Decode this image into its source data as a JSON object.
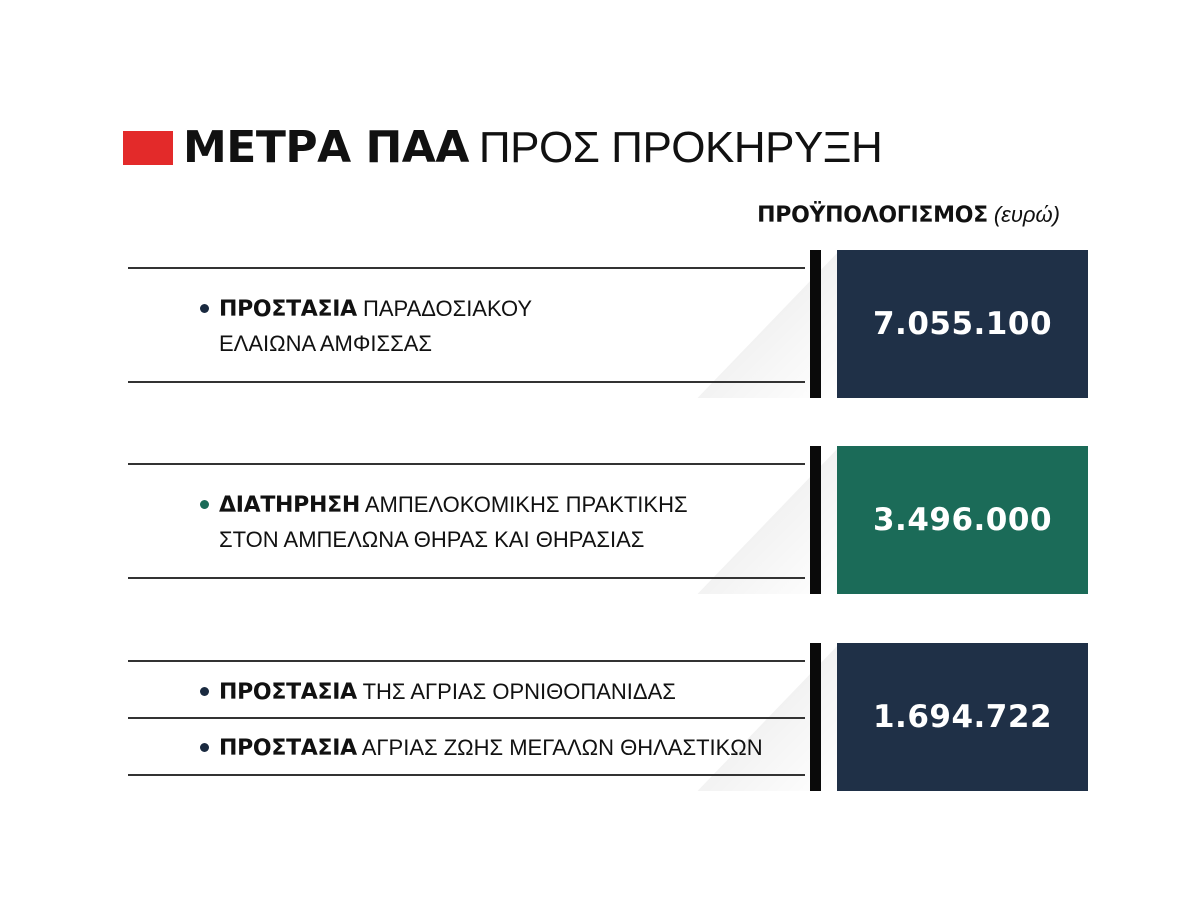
{
  "header": {
    "title_bold": "ΜΕΤΡΑ ΠΑΑ",
    "title_light": "ΠΡΟΣ ΠΡΟΚΗΡΥΞΗ",
    "accent_color": "#e32a2a"
  },
  "budget_header": {
    "label": "ΠΡΟΫΠΟΛΟΓΙΣΜΟΣ",
    "unit": "(ευρώ)"
  },
  "rows": [
    {
      "items": [
        {
          "keyword": "ΠΡΟΣΤΑΣΙΑ",
          "rest_line1": "ΠΑΡΑΔΟΣΙΑΚΟΥ",
          "line2": "ΕΛΑΙΩΝΑ ΑΜΦΙΣΣΑΣ"
        }
      ],
      "value": "7.055.100",
      "color": "#1f3047"
    },
    {
      "items": [
        {
          "keyword": "ΔΙΑΤΗΡΗΣΗ",
          "rest_line1": "ΑΜΠΕΛΟΚΟΜΙΚΗΣ ΠΡΑΚΤΙΚΗΣ",
          "line2": "ΣΤΟΝ ΑΜΠΕΛΩΝΑ ΘΗΡΑΣ ΚΑΙ ΘΗΡΑΣΙΑΣ"
        }
      ],
      "value": "3.496.000",
      "color": "#1b6b58"
    },
    {
      "items": [
        {
          "keyword": "ΠΡΟΣΤΑΣΙΑ",
          "rest_line1": "ΤΗΣ ΑΓΡΙΑΣ ΟΡΝΙΘΟΠΑΝΙΔΑΣ"
        },
        {
          "keyword": "ΠΡΟΣΤΑΣΙΑ",
          "rest_line1": "ΑΓΡΙΑΣ ΖΩΗΣ ΜΕΓΑΛΩΝ ΘΗΛΑΣΤΙΚΩΝ"
        }
      ],
      "value": "1.694.722",
      "color": "#1f3047"
    }
  ]
}
